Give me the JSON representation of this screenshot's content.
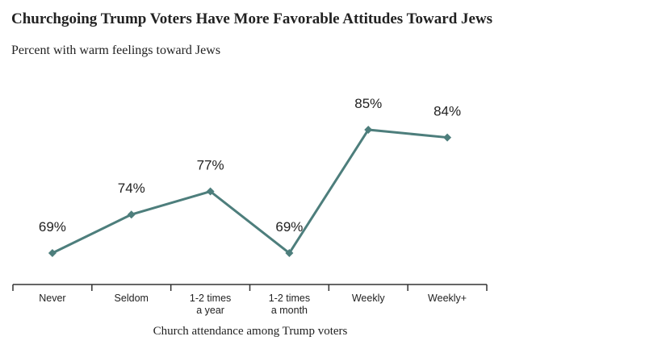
{
  "chart_data": {
    "type": "line",
    "title": "Churchgoing Trump Voters Have More Favorable Attitudes Toward Jews",
    "subtitle": "Percent with warm feelings toward Jews",
    "x_label": "Church attendance among Trump voters",
    "categories": [
      "Never",
      "Seldom",
      "1-2 times a year",
      "1-2 times a month",
      "Weekly",
      "Weekly+"
    ],
    "values": [
      69,
      74,
      77,
      69,
      85,
      84
    ],
    "value_labels": [
      "69%",
      "74%",
      "77%",
      "69%",
      "85%",
      "84%"
    ],
    "color": "#4d7e7c"
  }
}
